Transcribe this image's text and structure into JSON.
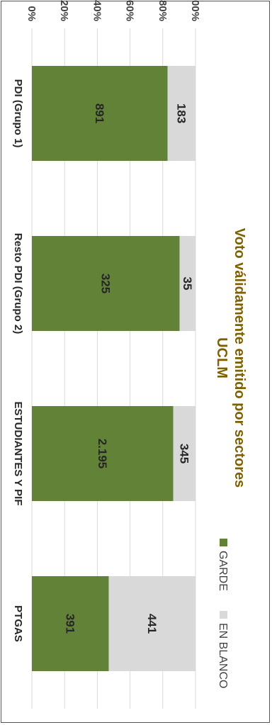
{
  "chart_data": {
    "type": "bar",
    "stacked": "percent",
    "title": "Voto válidamente emitido por sectores",
    "subtitle": "UCLM",
    "categories": [
      "PDI (Grupo 1)",
      "Resto PDI (Grupo 2)",
      "ESTUDIANTES Y PIF",
      "PTGAS"
    ],
    "series": [
      {
        "name": "GARDE",
        "values": [
          891,
          325,
          2195,
          391
        ],
        "labels": [
          "891",
          "325",
          "2.195",
          "391"
        ],
        "color": "#628238"
      },
      {
        "name": "EN BLANCO",
        "values": [
          183,
          35,
          345,
          441
        ],
        "labels": [
          "183",
          "35",
          "345",
          "441"
        ],
        "color": "#d9d9d9"
      }
    ],
    "yticks": [
      "0%",
      "20%",
      "40%",
      "60%",
      "80%",
      "100%"
    ],
    "ylim": [
      0,
      100
    ],
    "grid": true,
    "legend": "top"
  }
}
